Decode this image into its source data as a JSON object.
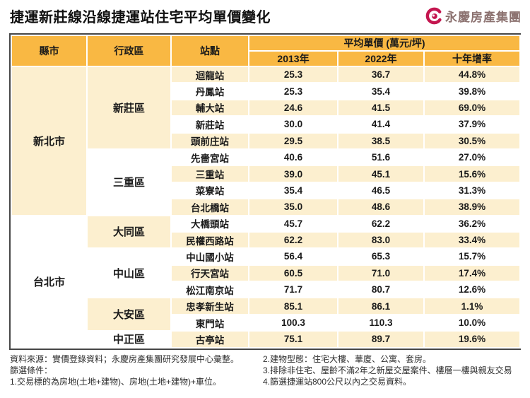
{
  "title": "捷運新莊線沿線捷運站住宅平均單價變化",
  "logo": {
    "company": "永慶房產集團",
    "icon": "yungching-spiral-logo",
    "icon_color": "#C4164F",
    "text_color": "#8C7270"
  },
  "colors": {
    "header_orange": "#F9B843",
    "row_cream": "#FCEFCF",
    "row_white": "#FFFFFF",
    "table_border": "#474747",
    "text_dark": "#1A1A1A"
  },
  "table": {
    "headers": {
      "city": "縣市",
      "district": "行政區",
      "station": "站點",
      "price_group": "平均單價 (萬元/坪)",
      "y2013": "2013年",
      "y2022": "2022年",
      "growth": "十年增率"
    },
    "cities": [
      {
        "name": "新北市",
        "bg": "cream",
        "districts": [
          {
            "name": "新莊區",
            "bg": "cream",
            "stations": [
              {
                "name": "迴龍站",
                "y2013": "25.3",
                "y2022": "36.7",
                "growth": "44.8%"
              },
              {
                "name": "丹鳳站",
                "y2013": "25.3",
                "y2022": "35.4",
                "growth": "39.8%"
              },
              {
                "name": "輔大站",
                "y2013": "24.6",
                "y2022": "41.5",
                "growth": "69.0%"
              },
              {
                "name": "新莊站",
                "y2013": "30.0",
                "y2022": "41.4",
                "growth": "37.9%"
              },
              {
                "name": "頭前庄站",
                "y2013": "29.5",
                "y2022": "38.5",
                "growth": "30.5%"
              }
            ]
          },
          {
            "name": "三重區",
            "bg": "white",
            "stations": [
              {
                "name": "先嗇宮站",
                "y2013": "40.6",
                "y2022": "51.6",
                "growth": "27.0%"
              },
              {
                "name": "三重站",
                "y2013": "39.0",
                "y2022": "45.1",
                "growth": "15.6%"
              },
              {
                "name": "菜寮站",
                "y2013": "35.4",
                "y2022": "46.5",
                "growth": "31.3%"
              },
              {
                "name": "台北橋站",
                "y2013": "35.0",
                "y2022": "48.6",
                "growth": "38.9%"
              }
            ]
          }
        ]
      },
      {
        "name": "台北市",
        "bg": "white",
        "districts": [
          {
            "name": "大同區",
            "bg": "cream",
            "stations": [
              {
                "name": "大橋頭站",
                "y2013": "45.7",
                "y2022": "62.2",
                "growth": "36.2%"
              },
              {
                "name": "民權西路站",
                "y2013": "62.2",
                "y2022": "83.0",
                "growth": "33.4%"
              }
            ]
          },
          {
            "name": "中山區",
            "bg": "white",
            "stations": [
              {
                "name": "中山國小站",
                "y2013": "56.4",
                "y2022": "65.3",
                "growth": "15.7%"
              },
              {
                "name": "行天宮站",
                "y2013": "60.5",
                "y2022": "71.0",
                "growth": "17.4%"
              },
              {
                "name": "松江南京站",
                "y2013": "71.7",
                "y2022": "80.7",
                "growth": "12.6%"
              }
            ]
          },
          {
            "name": "大安區",
            "bg": "cream",
            "stations": [
              {
                "name": "忠孝新生站",
                "y2013": "85.1",
                "y2022": "86.1",
                "growth": "1.1%"
              },
              {
                "name": "東門站",
                "y2013": "100.3",
                "y2022": "110.3",
                "growth": "10.0%"
              }
            ]
          },
          {
            "name": "中正區",
            "bg": "white",
            "stations": [
              {
                "name": "古亭站",
                "y2013": "75.1",
                "y2022": "89.7",
                "growth": "19.6%"
              }
            ]
          }
        ]
      }
    ]
  },
  "footer": {
    "left": [
      "資料來源：實價登錄資料；永慶房產集團研究發展中心彙整。",
      "篩選條件：",
      "1.交易標的為房地(土地+建物)、房地(土地+建物)+車位。"
    ],
    "right": [
      "2.建物型態：住宅大樓、華廈、公寓、套房。",
      "3.排除非住宅、屋齡不滿2年之新屋交屋案件、樓層一樓與親友交易",
      "4.篩選捷運站800公尺以內之交易資料。"
    ]
  },
  "chart_data": {
    "type": "table",
    "title": "捷運新莊線沿線捷運站住宅平均單價變化",
    "unit": "平均單價 (萬元/坪)",
    "columns": [
      "縣市",
      "行政區",
      "站點",
      "2013年",
      "2022年",
      "十年增率"
    ],
    "rows": [
      [
        "新北市",
        "新莊區",
        "迴龍站",
        25.3,
        36.7,
        "44.8%"
      ],
      [
        "新北市",
        "新莊區",
        "丹鳳站",
        25.3,
        35.4,
        "39.8%"
      ],
      [
        "新北市",
        "新莊區",
        "輔大站",
        24.6,
        41.5,
        "69.0%"
      ],
      [
        "新北市",
        "新莊區",
        "新莊站",
        30.0,
        41.4,
        "37.9%"
      ],
      [
        "新北市",
        "新莊區",
        "頭前庄站",
        29.5,
        38.5,
        "30.5%"
      ],
      [
        "新北市",
        "三重區",
        "先嗇宮站",
        40.6,
        51.6,
        "27.0%"
      ],
      [
        "新北市",
        "三重區",
        "三重站",
        39.0,
        45.1,
        "15.6%"
      ],
      [
        "新北市",
        "三重區",
        "菜寮站",
        35.4,
        46.5,
        "31.3%"
      ],
      [
        "新北市",
        "三重區",
        "台北橋站",
        35.0,
        48.6,
        "38.9%"
      ],
      [
        "台北市",
        "大同區",
        "大橋頭站",
        45.7,
        62.2,
        "36.2%"
      ],
      [
        "台北市",
        "大同區",
        "民權西路站",
        62.2,
        83.0,
        "33.4%"
      ],
      [
        "台北市",
        "中山區",
        "中山國小站",
        56.4,
        65.3,
        "15.7%"
      ],
      [
        "台北市",
        "中山區",
        "行天宮站",
        60.5,
        71.0,
        "17.4%"
      ],
      [
        "台北市",
        "中山區",
        "松江南京站",
        71.7,
        80.7,
        "12.6%"
      ],
      [
        "台北市",
        "大安區",
        "忠孝新生站",
        85.1,
        86.1,
        "1.1%"
      ],
      [
        "台北市",
        "大安區",
        "東門站",
        100.3,
        110.3,
        "10.0%"
      ],
      [
        "台北市",
        "中正區",
        "古亭站",
        75.1,
        89.7,
        "19.6%"
      ]
    ]
  }
}
